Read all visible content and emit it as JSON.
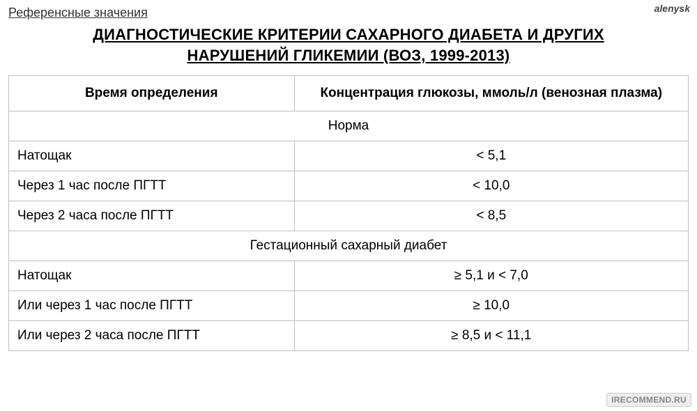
{
  "watermark_top": "alenysk",
  "watermark_bottom": "IRECOMMEND.RU",
  "subtitle": "Референсные значения",
  "title_line1": "ДИАГНОСТИЧЕСКИЕ КРИТЕРИИ САХАРНОГО ДИАБЕТА И ДРУГИХ",
  "title_line2": "НАРУШЕНИЙ ГЛИКЕМИИ (ВОЗ, 1999-2013)",
  "table": {
    "columns": [
      "Время определения",
      "Концентрация глюкозы, ммоль/л (венозная плазма)"
    ],
    "column_widths_pct": [
      42,
      58
    ],
    "header_fontsize": 19,
    "cell_fontsize": 19,
    "border_color": "#bfbfbf",
    "sections": [
      {
        "label": "Норма",
        "rows": [
          {
            "time": "Натощак",
            "value": "< 5,1"
          },
          {
            "time": "Через 1 час после ПГТТ",
            "value": "< 10,0"
          },
          {
            "time": "Через 2 часа после ПГТТ",
            "value": "< 8,5"
          }
        ]
      },
      {
        "label": "Гестационный сахарный диабет",
        "rows": [
          {
            "time": "Натощак",
            "value": "≥ 5,1 и < 7,0"
          },
          {
            "time": "Или через 1 час после ПГТТ",
            "value": "≥ 10,0"
          },
          {
            "time": "Или через 2 часа после ПГТТ",
            "value": "≥ 8,5 и < 11,1"
          }
        ]
      }
    ]
  },
  "colors": {
    "text": "#000000",
    "background": "#ffffff",
    "border": "#bfbfbf",
    "subtitle": "#333333",
    "watermark_top": "#444444",
    "watermark_bottom": "#888888"
  }
}
